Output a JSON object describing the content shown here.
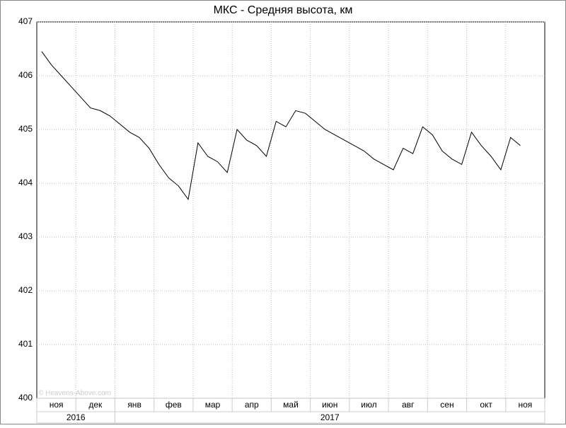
{
  "chart_data": {
    "type": "line",
    "title": "МКС - Средняя высота, км",
    "watermark": "© Heavens-Above.com",
    "categories": [
      "ноя",
      null,
      null,
      null,
      "дек",
      null,
      null,
      null,
      "янв",
      null,
      null,
      null,
      "фев",
      null,
      null,
      null,
      "мар",
      null,
      null,
      null,
      "апр",
      null,
      null,
      null,
      "май",
      null,
      null,
      null,
      "июн",
      null,
      null,
      null,
      "июл",
      null,
      null,
      null,
      "авг",
      null,
      null,
      null,
      "сен",
      null,
      null,
      null,
      "окт",
      null,
      null,
      null,
      "ноя",
      null,
      null,
      null
    ],
    "years": [
      "2016",
      "2017"
    ],
    "series": [
      {
        "name": "Средняя высота",
        "color": "#000000",
        "values": [
          406.45,
          406.2,
          406.0,
          405.8,
          405.6,
          405.4,
          405.35,
          405.25,
          405.1,
          404.95,
          404.85,
          404.65,
          404.35,
          404.1,
          403.95,
          403.7,
          404.75,
          404.5,
          404.4,
          404.2,
          405.0,
          404.8,
          404.7,
          404.5,
          405.15,
          405.05,
          405.35,
          405.3,
          405.15,
          405.0,
          404.9,
          404.8,
          404.7,
          404.6,
          404.45,
          404.35,
          404.25,
          404.65,
          404.55,
          405.05,
          404.9,
          404.6,
          404.45,
          404.35,
          404.95,
          404.7,
          404.5,
          404.25,
          404.85,
          404.7,
          null,
          null
        ]
      }
    ],
    "ylim": [
      400,
      407
    ],
    "yticks": [
      400,
      401,
      402,
      403,
      404,
      405,
      406,
      407
    ],
    "grid": true
  }
}
